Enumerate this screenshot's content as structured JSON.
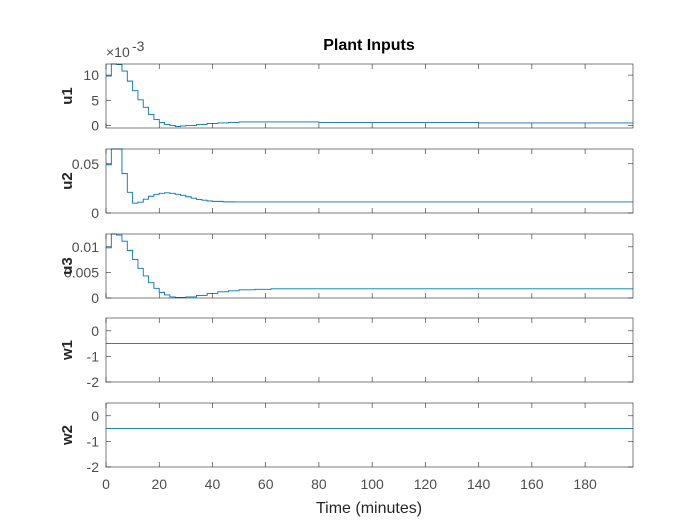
{
  "chart_data": {
    "type": "line",
    "title": "Plant Inputs",
    "xlabel": "Time (minutes)",
    "xlim": [
      0,
      198
    ],
    "xticks": [
      0,
      20,
      40,
      60,
      80,
      100,
      120,
      140,
      160,
      180
    ],
    "line_color": "#0072bd",
    "axes_color": "#262626",
    "subplots": [
      {
        "ylabel": "u1",
        "ylim": [
          -0.0005,
          0.0122
        ],
        "yticks": [
          0,
          0.005,
          0.01
        ],
        "yticklabels": [
          "0",
          "5",
          "10"
        ],
        "exponent_label": "×10",
        "exponent": "-3",
        "step": true,
        "x": [
          0,
          2,
          4,
          6,
          8,
          10,
          12,
          14,
          16,
          18,
          20,
          22,
          24,
          26,
          28,
          30,
          34,
          38,
          42,
          46,
          50,
          56,
          62,
          70,
          80,
          100,
          120,
          140,
          160,
          180,
          198
        ],
        "y": [
          0.0098,
          0.0122,
          0.0121,
          0.0108,
          0.0088,
          0.0069,
          0.0051,
          0.0036,
          0.0022,
          0.0012,
          0.0006,
          0.0002,
          0.0,
          -0.0002,
          -0.0001,
          0.0,
          0.0002,
          0.0004,
          0.0005,
          0.0006,
          0.0007,
          0.0007,
          0.0007,
          0.0007,
          0.0006,
          0.0006,
          0.0006,
          0.0005,
          0.0005,
          0.0005,
          0.0005
        ]
      },
      {
        "ylabel": "u2",
        "ylim": [
          0,
          0.065
        ],
        "yticks": [
          0,
          0.05
        ],
        "yticklabels": [
          "0",
          "0.05"
        ],
        "step": true,
        "x": [
          0,
          2,
          4,
          6,
          8,
          10,
          12,
          14,
          16,
          18,
          20,
          22,
          24,
          26,
          28,
          30,
          32,
          34,
          36,
          38,
          40,
          44,
          48,
          54,
          60,
          80,
          100,
          120,
          140,
          160,
          180,
          198
        ],
        "y": [
          0.049,
          0.065,
          0.065,
          0.04,
          0.021,
          0.01,
          0.011,
          0.014,
          0.017,
          0.019,
          0.02,
          0.0205,
          0.02,
          0.019,
          0.018,
          0.0165,
          0.015,
          0.0138,
          0.013,
          0.0122,
          0.0118,
          0.0113,
          0.0112,
          0.0112,
          0.0112,
          0.0112,
          0.0112,
          0.0112,
          0.0112,
          0.0112,
          0.0112,
          0.0112
        ]
      },
      {
        "ylabel": "u3",
        "ylim": [
          0,
          0.0125
        ],
        "yticks": [
          0,
          0.005,
          0.01
        ],
        "yticklabels": [
          "0",
          "0.005",
          "0.01"
        ],
        "step": true,
        "x": [
          0,
          2,
          4,
          6,
          8,
          10,
          12,
          14,
          16,
          18,
          20,
          22,
          24,
          26,
          28,
          30,
          34,
          38,
          42,
          46,
          50,
          56,
          62,
          70,
          80,
          100,
          120,
          140,
          160,
          180,
          198
        ],
        "y": [
          0.0098,
          0.0125,
          0.0123,
          0.0111,
          0.0093,
          0.0075,
          0.0058,
          0.0043,
          0.003,
          0.0019,
          0.0011,
          0.0006,
          0.0002,
          0.0001,
          0.0001,
          0.0002,
          0.0005,
          0.0009,
          0.0012,
          0.0014,
          0.0016,
          0.0017,
          0.0018,
          0.0018,
          0.0018,
          0.0018,
          0.0018,
          0.0018,
          0.0018,
          0.0018,
          0.0018
        ]
      },
      {
        "ylabel": "w1",
        "ylim": [
          -2,
          0.5
        ],
        "yticks": [
          -2,
          -1,
          0
        ],
        "yticklabels": [
          "-2",
          "-1",
          "0"
        ],
        "step": false,
        "x": [
          0,
          198
        ],
        "y": [
          -0.5,
          -0.5
        ]
      },
      {
        "ylabel": "w2",
        "ylim": [
          -2,
          0.5
        ],
        "yticks": [
          -2,
          -1,
          0
        ],
        "yticklabels": [
          "-2",
          "-1",
          "0"
        ],
        "step": false,
        "x": [
          0,
          198
        ],
        "y": [
          -0.5,
          -0.5
        ]
      }
    ]
  }
}
